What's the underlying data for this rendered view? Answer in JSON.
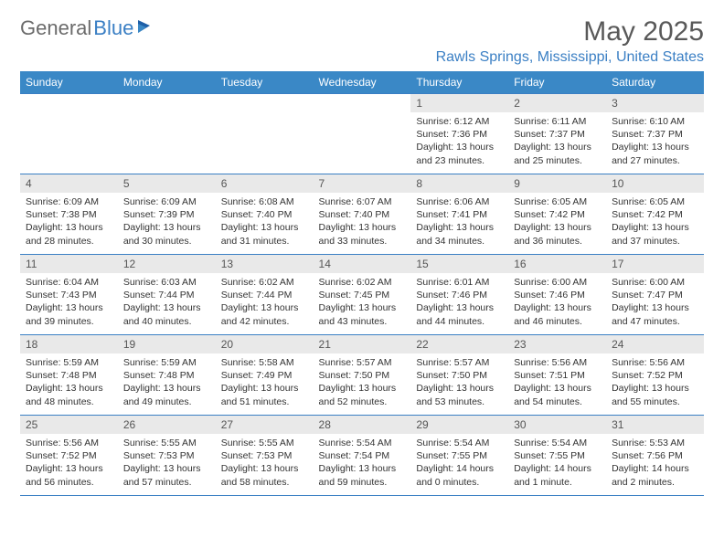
{
  "logo": {
    "text1": "General",
    "text2": "Blue"
  },
  "title": "May 2025",
  "location": "Rawls Springs, Mississippi, United States",
  "colors": {
    "header_bg": "#3a88c6",
    "header_text": "#ffffff",
    "daynum_bg": "#e9e9e9",
    "border": "#3a7fc4",
    "title_color": "#595959",
    "location_color": "#3a7fc4"
  },
  "day_headers": [
    "Sunday",
    "Monday",
    "Tuesday",
    "Wednesday",
    "Thursday",
    "Friday",
    "Saturday"
  ],
  "weeks": [
    [
      null,
      null,
      null,
      null,
      {
        "n": "1",
        "sr": "6:12 AM",
        "ss": "7:36 PM",
        "dl": "13 hours and 23 minutes."
      },
      {
        "n": "2",
        "sr": "6:11 AM",
        "ss": "7:37 PM",
        "dl": "13 hours and 25 minutes."
      },
      {
        "n": "3",
        "sr": "6:10 AM",
        "ss": "7:37 PM",
        "dl": "13 hours and 27 minutes."
      }
    ],
    [
      {
        "n": "4",
        "sr": "6:09 AM",
        "ss": "7:38 PM",
        "dl": "13 hours and 28 minutes."
      },
      {
        "n": "5",
        "sr": "6:09 AM",
        "ss": "7:39 PM",
        "dl": "13 hours and 30 minutes."
      },
      {
        "n": "6",
        "sr": "6:08 AM",
        "ss": "7:40 PM",
        "dl": "13 hours and 31 minutes."
      },
      {
        "n": "7",
        "sr": "6:07 AM",
        "ss": "7:40 PM",
        "dl": "13 hours and 33 minutes."
      },
      {
        "n": "8",
        "sr": "6:06 AM",
        "ss": "7:41 PM",
        "dl": "13 hours and 34 minutes."
      },
      {
        "n": "9",
        "sr": "6:05 AM",
        "ss": "7:42 PM",
        "dl": "13 hours and 36 minutes."
      },
      {
        "n": "10",
        "sr": "6:05 AM",
        "ss": "7:42 PM",
        "dl": "13 hours and 37 minutes."
      }
    ],
    [
      {
        "n": "11",
        "sr": "6:04 AM",
        "ss": "7:43 PM",
        "dl": "13 hours and 39 minutes."
      },
      {
        "n": "12",
        "sr": "6:03 AM",
        "ss": "7:44 PM",
        "dl": "13 hours and 40 minutes."
      },
      {
        "n": "13",
        "sr": "6:02 AM",
        "ss": "7:44 PM",
        "dl": "13 hours and 42 minutes."
      },
      {
        "n": "14",
        "sr": "6:02 AM",
        "ss": "7:45 PM",
        "dl": "13 hours and 43 minutes."
      },
      {
        "n": "15",
        "sr": "6:01 AM",
        "ss": "7:46 PM",
        "dl": "13 hours and 44 minutes."
      },
      {
        "n": "16",
        "sr": "6:00 AM",
        "ss": "7:46 PM",
        "dl": "13 hours and 46 minutes."
      },
      {
        "n": "17",
        "sr": "6:00 AM",
        "ss": "7:47 PM",
        "dl": "13 hours and 47 minutes."
      }
    ],
    [
      {
        "n": "18",
        "sr": "5:59 AM",
        "ss": "7:48 PM",
        "dl": "13 hours and 48 minutes."
      },
      {
        "n": "19",
        "sr": "5:59 AM",
        "ss": "7:48 PM",
        "dl": "13 hours and 49 minutes."
      },
      {
        "n": "20",
        "sr": "5:58 AM",
        "ss": "7:49 PM",
        "dl": "13 hours and 51 minutes."
      },
      {
        "n": "21",
        "sr": "5:57 AM",
        "ss": "7:50 PM",
        "dl": "13 hours and 52 minutes."
      },
      {
        "n": "22",
        "sr": "5:57 AM",
        "ss": "7:50 PM",
        "dl": "13 hours and 53 minutes."
      },
      {
        "n": "23",
        "sr": "5:56 AM",
        "ss": "7:51 PM",
        "dl": "13 hours and 54 minutes."
      },
      {
        "n": "24",
        "sr": "5:56 AM",
        "ss": "7:52 PM",
        "dl": "13 hours and 55 minutes."
      }
    ],
    [
      {
        "n": "25",
        "sr": "5:56 AM",
        "ss": "7:52 PM",
        "dl": "13 hours and 56 minutes."
      },
      {
        "n": "26",
        "sr": "5:55 AM",
        "ss": "7:53 PM",
        "dl": "13 hours and 57 minutes."
      },
      {
        "n": "27",
        "sr": "5:55 AM",
        "ss": "7:53 PM",
        "dl": "13 hours and 58 minutes."
      },
      {
        "n": "28",
        "sr": "5:54 AM",
        "ss": "7:54 PM",
        "dl": "13 hours and 59 minutes."
      },
      {
        "n": "29",
        "sr": "5:54 AM",
        "ss": "7:55 PM",
        "dl": "14 hours and 0 minutes."
      },
      {
        "n": "30",
        "sr": "5:54 AM",
        "ss": "7:55 PM",
        "dl": "14 hours and 1 minute."
      },
      {
        "n": "31",
        "sr": "5:53 AM",
        "ss": "7:56 PM",
        "dl": "14 hours and 2 minutes."
      }
    ]
  ],
  "labels": {
    "sunrise": "Sunrise: ",
    "sunset": "Sunset: ",
    "daylight": "Daylight: "
  }
}
